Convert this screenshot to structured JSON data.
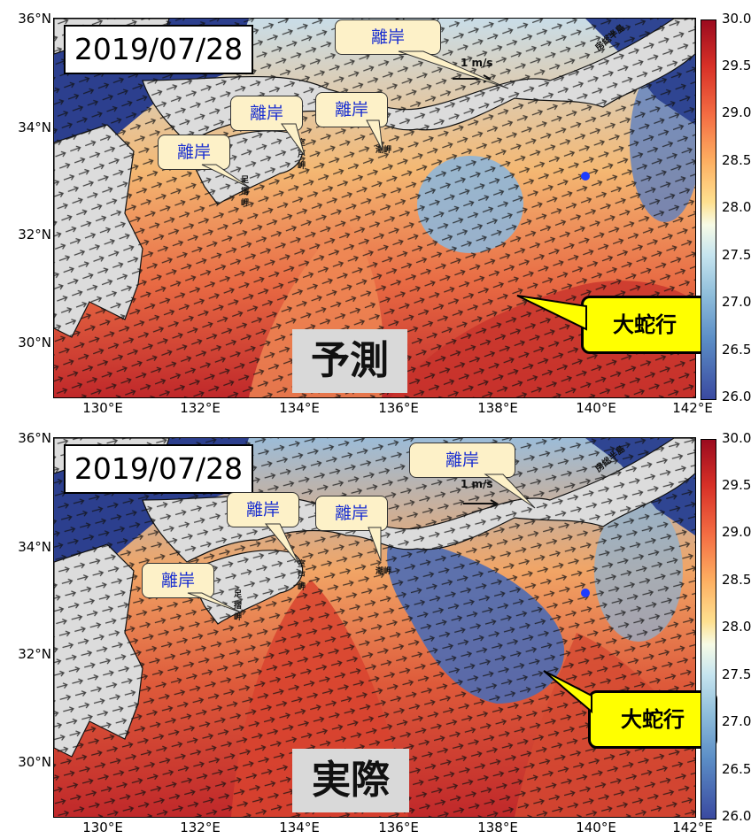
{
  "top_panel": {
    "date": "2019/07/28",
    "label": "予測",
    "callouts": [
      "離岸",
      "離岸",
      "離岸",
      "離岸"
    ],
    "meander": "大蛇行",
    "scale": "1 m/s",
    "place_labels": [
      "房総半島",
      "室戸岬",
      "潮岬",
      "足摺岬"
    ]
  },
  "bottom_panel": {
    "date": "2019/07/28",
    "label": "実際",
    "callouts": [
      "離岸",
      "離岸",
      "離岸",
      "離岸"
    ],
    "meander": "大蛇行",
    "scale": "1 m/s",
    "place_labels": [
      "房総半島",
      "室戸岬",
      "潮岬",
      "足摺岬"
    ]
  },
  "axes": {
    "y_ticks": [
      "36°N",
      "34°N",
      "32°N",
      "30°N"
    ],
    "x_ticks": [
      "130°E",
      "132°E",
      "134°E",
      "136°E",
      "138°E",
      "140°E",
      "142°E"
    ]
  },
  "colorbar": {
    "ticks": [
      "30.0",
      "29.5",
      "29.0",
      "28.5",
      "28.0",
      "27.5",
      "27.0",
      "26.5",
      "26.0"
    ],
    "colors": {
      "max": "#9b0b1f",
      "mid": "#f7fbe6",
      "min": "#3a4aa0"
    }
  },
  "marker_color": "#1e3cff"
}
